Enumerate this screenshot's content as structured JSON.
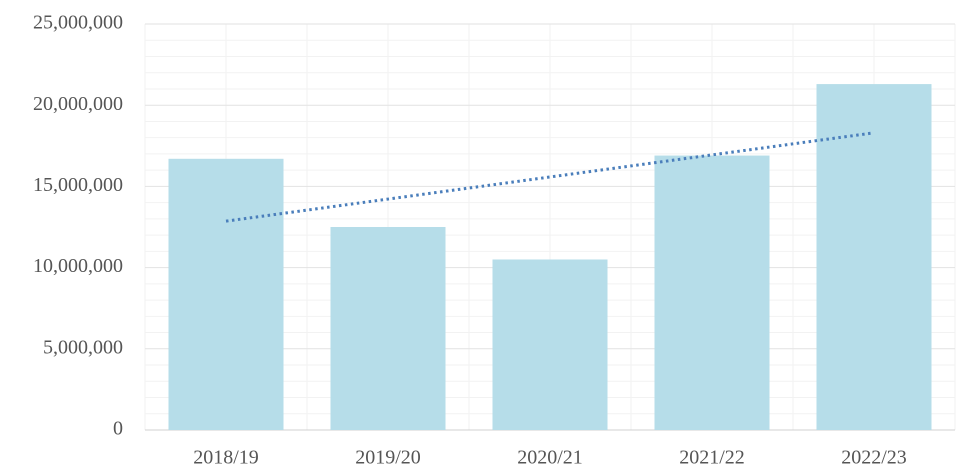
{
  "chart_data": {
    "type": "bar",
    "categories": [
      "2018/19",
      "2019/20",
      "2020/21",
      "2021/22",
      "2022/23"
    ],
    "values": [
      16700000,
      12500000,
      10500000,
      16900000,
      21300000
    ],
    "color": "#b6dde9",
    "trendline": {
      "values": [
        12860000,
        14220000,
        15580000,
        16940000,
        18300000
      ],
      "color": "#4a7ebb",
      "style": "dotted"
    },
    "ylim": [
      0,
      25000000
    ],
    "yticks": [
      0,
      {
        "value": 5000000,
        "label": "5,000,000"
      },
      {
        "value": 10000000,
        "label": "10,000,000"
      },
      {
        "value": 15000000,
        "label": "15,000,000"
      },
      {
        "value": 20000000,
        "label": "20,000,000"
      },
      {
        "value": 25000000,
        "label": "25,000,000"
      }
    ],
    "grid": true,
    "minor_grid": true
  }
}
